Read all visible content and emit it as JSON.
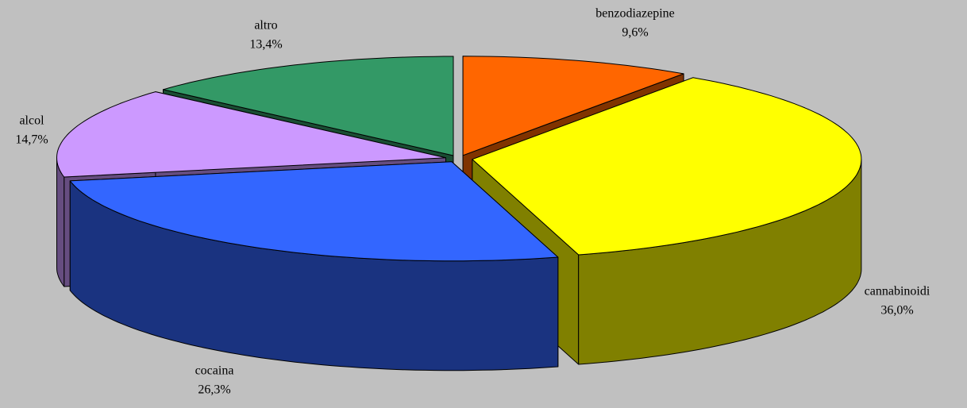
{
  "chart_data": {
    "type": "pie",
    "categories": [
      "benzodiazepine",
      "cannabinoidi",
      "cocaina",
      "alcol",
      "altro"
    ],
    "values": [
      9.6,
      36.0,
      26.3,
      14.7,
      13.4
    ],
    "value_labels": [
      "9,6%",
      "36,0%",
      "26,3%",
      "14,7%",
      "13,4%"
    ],
    "colors": [
      "#ff6600",
      "#ffff00",
      "#3366ff",
      "#cc99ff",
      "#339966"
    ]
  }
}
